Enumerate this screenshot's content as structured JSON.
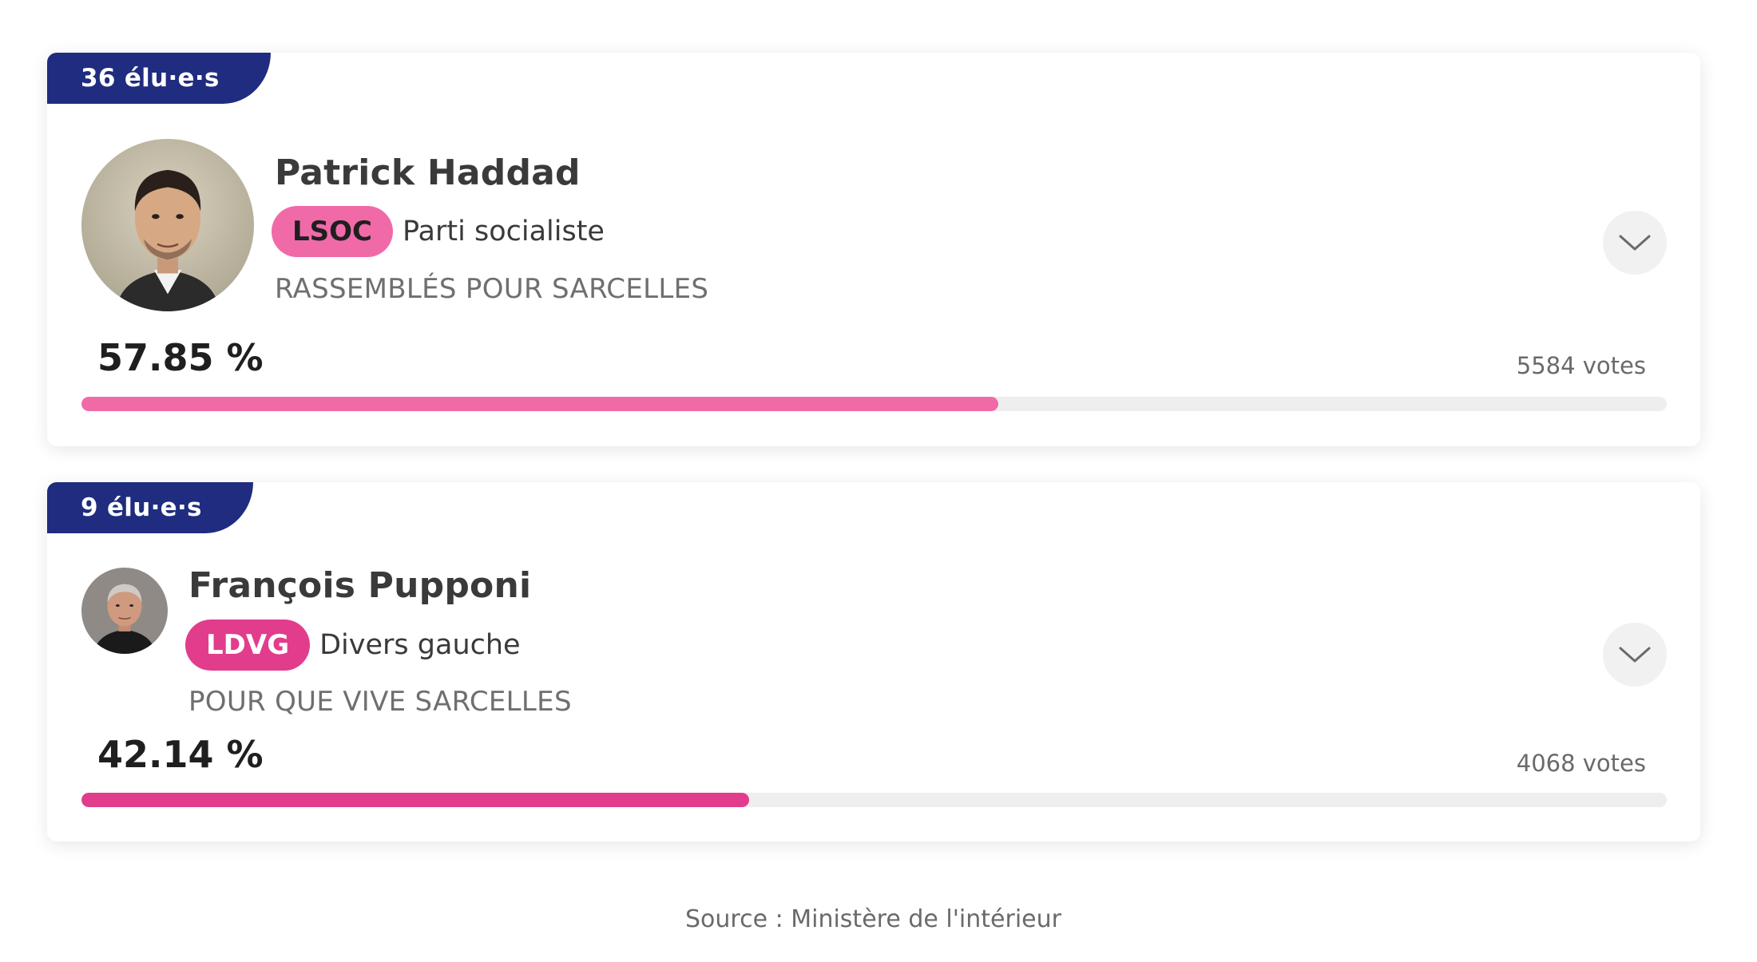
{
  "candidates": [
    {
      "elected_label": "36 élu·e·s",
      "name": "Patrick Haddad",
      "party_code": "LSOC",
      "party_name": "Parti socialiste",
      "list_name": "RASSEMBLÉS POUR SARCELLES",
      "percent_label": "57.85 %",
      "votes_label": "5584 votes",
      "share": 0.5785,
      "bar_color": "#f06aa8",
      "expand_icon": "chevron-down-icon"
    },
    {
      "elected_label": "9 élu·e·s",
      "name": "François Pupponi",
      "party_code": "LDVG",
      "party_name": "Divers gauche",
      "list_name": "POUR QUE VIVE SARCELLES",
      "percent_label": "42.14 %",
      "votes_label": "4068 votes",
      "share": 0.4214,
      "bar_color": "#e23c8d",
      "expand_icon": "chevron-down-icon"
    }
  ],
  "footer": {
    "source": "Source : Ministère de l'intérieur"
  },
  "colors": {
    "tab_background": "#1f2c7f",
    "lsoc_badge": "#f06aa8",
    "ldvg_badge": "#e23c8d"
  }
}
